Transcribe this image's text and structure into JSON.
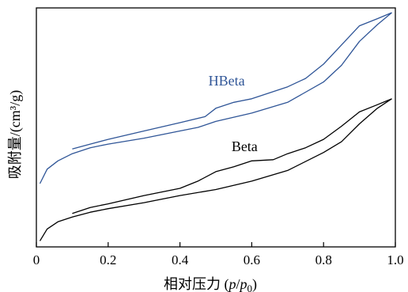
{
  "chart_data": {
    "type": "line",
    "title": "",
    "xlabel": "相对压力 (p/p0)",
    "xlabel_parts": [
      "相对压力 (",
      "p",
      "/",
      "p",
      "0",
      ")"
    ],
    "ylabel": "吸附量/(cm³/g)",
    "xlim": [
      0,
      1.0
    ],
    "ylim": [
      0,
      100
    ],
    "y_ticks_shown": false,
    "x_ticks": [
      0,
      0.2,
      0.4,
      0.6,
      0.8,
      1.0
    ],
    "x_tick_labels": [
      "0",
      "0.2",
      "0.4",
      "0.6",
      "0.8",
      "1.0"
    ],
    "grid": false,
    "legend": "none (inline labels)",
    "series": [
      {
        "name": "HBeta",
        "color": "#2f5597",
        "adsorption": [
          [
            0.01,
            26.5
          ],
          [
            0.03,
            32.5
          ],
          [
            0.06,
            36.0
          ],
          [
            0.1,
            39.0
          ],
          [
            0.15,
            41.5
          ],
          [
            0.2,
            43.0
          ],
          [
            0.3,
            45.5
          ],
          [
            0.4,
            48.5
          ],
          [
            0.45,
            50.0
          ],
          [
            0.5,
            52.5
          ],
          [
            0.6,
            56.0
          ],
          [
            0.7,
            60.5
          ],
          [
            0.8,
            69.0
          ],
          [
            0.85,
            76.0
          ],
          [
            0.9,
            86.0
          ],
          [
            0.95,
            93.0
          ],
          [
            0.99,
            98.0
          ]
        ],
        "desorption": [
          [
            0.99,
            98.0
          ],
          [
            0.95,
            95.5
          ],
          [
            0.9,
            92.5
          ],
          [
            0.85,
            84.5
          ],
          [
            0.8,
            76.5
          ],
          [
            0.75,
            70.5
          ],
          [
            0.7,
            67.0
          ],
          [
            0.6,
            62.0
          ],
          [
            0.55,
            60.5
          ],
          [
            0.5,
            58.0
          ],
          [
            0.47,
            54.5
          ],
          [
            0.4,
            52.0
          ],
          [
            0.3,
            48.5
          ],
          [
            0.2,
            45.0
          ],
          [
            0.15,
            43.0
          ],
          [
            0.1,
            41.0
          ]
        ]
      },
      {
        "name": "Beta",
        "color": "#000000",
        "adsorption": [
          [
            0.01,
            2.5
          ],
          [
            0.03,
            7.5
          ],
          [
            0.06,
            10.5
          ],
          [
            0.1,
            12.5
          ],
          [
            0.15,
            14.5
          ],
          [
            0.2,
            16.0
          ],
          [
            0.3,
            18.5
          ],
          [
            0.4,
            21.5
          ],
          [
            0.5,
            24.0
          ],
          [
            0.6,
            27.5
          ],
          [
            0.7,
            32.0
          ],
          [
            0.8,
            39.5
          ],
          [
            0.85,
            44.0
          ],
          [
            0.9,
            51.5
          ],
          [
            0.95,
            58.0
          ],
          [
            0.99,
            62.0
          ]
        ],
        "desorption": [
          [
            0.99,
            62.0
          ],
          [
            0.95,
            59.5
          ],
          [
            0.9,
            56.5
          ],
          [
            0.85,
            50.5
          ],
          [
            0.8,
            45.0
          ],
          [
            0.75,
            41.5
          ],
          [
            0.7,
            39.0
          ],
          [
            0.66,
            36.5
          ],
          [
            0.6,
            36.0
          ],
          [
            0.55,
            33.5
          ],
          [
            0.5,
            31.5
          ],
          [
            0.45,
            27.5
          ],
          [
            0.4,
            24.5
          ],
          [
            0.3,
            21.5
          ],
          [
            0.2,
            18.0
          ],
          [
            0.15,
            16.5
          ],
          [
            0.1,
            14.0
          ]
        ]
      }
    ]
  }
}
